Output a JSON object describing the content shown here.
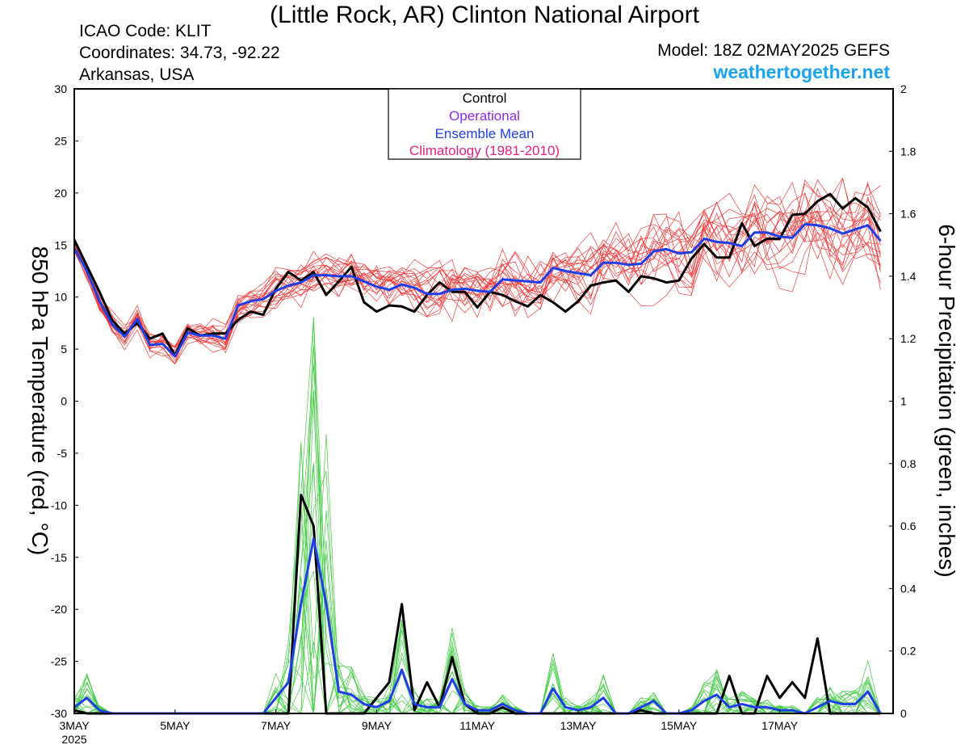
{
  "header": {
    "title": "(Little Rock, AR) Clinton National Airport",
    "icao": "ICAO Code: KLIT",
    "coordinates": "Coordinates: 34.73, -92.22",
    "region": "Arkansas, USA",
    "model": "Model: 18Z 02MAY2025 GEFS",
    "site": "weathertogether.net"
  },
  "colors": {
    "control": "#000000",
    "operational": "#8a2be2",
    "mean": "#1f3fe6",
    "climatology": "#e0208a",
    "temperature_members": "#ee3a3a",
    "precip_members": "#44cc44",
    "site": "#1aa3f0"
  },
  "chart_data": {
    "type": "line",
    "legend": {
      "position": "top-center",
      "entries": [
        "Control",
        "Operational",
        "Ensemble Mean",
        "Climatology (1981-2010)"
      ]
    },
    "xlabels": [
      "3MAY",
      "5MAY",
      "7MAY",
      "9MAY",
      "11MAY",
      "13MAY",
      "15MAY",
      "17MAY"
    ],
    "xyear": "2025",
    "x_range_days": [
      3,
      19.25
    ],
    "left_axis": {
      "label": "850 hPa Temperature (red, °C)",
      "range": [
        -30,
        30
      ],
      "ticks": [
        -30,
        -25,
        -20,
        -15,
        -10,
        -5,
        0,
        5,
        10,
        15,
        20,
        25,
        30
      ]
    },
    "right_axis": {
      "label": "6-hour Precipitation (green, inches)",
      "range": [
        0,
        2
      ],
      "ticks": [
        "0",
        "0.2",
        "0.4",
        "0.6",
        "0.8",
        "1",
        "1.2",
        "1.4",
        "1.6",
        "1.8",
        "2"
      ]
    },
    "series": [
      {
        "name": "Control",
        "axis": "left",
        "values": [
          15.5,
          13.0,
          10.5,
          7.8,
          6.5,
          7.5,
          6.0,
          6.5,
          4.4,
          7.0,
          6.3,
          6.5,
          6.5,
          7.8,
          8.6,
          8.3,
          10.8,
          12.4,
          11.6,
          12.4,
          10.2,
          11.5,
          12.9,
          9.5,
          8.6,
          9.2,
          9.1,
          8.6,
          10.2,
          11.4,
          10.5,
          10.5,
          9.0,
          10.5,
          10.2,
          9.6,
          9.1,
          10.2,
          9.5,
          8.6,
          9.6,
          11.1,
          11.4,
          11.6,
          10.5,
          12.0,
          11.8,
          11.4,
          11.6,
          13.7,
          15.1,
          13.8,
          13.8,
          17.1,
          14.9,
          15.6,
          15.6,
          17.9,
          18.0,
          19.2,
          19.9,
          18.5,
          19.5,
          18.6,
          16.3
        ]
      },
      {
        "name": "Ensemble Mean",
        "axis": "left",
        "values": [
          14.7,
          12.5,
          9.6,
          7.4,
          6.2,
          7.9,
          5.4,
          5.5,
          4.3,
          6.6,
          6.3,
          6.3,
          6.0,
          9.2,
          9.6,
          9.8,
          10.6,
          11.1,
          11.4,
          12.1,
          12.1,
          12.0,
          12.0,
          11.5,
          11.0,
          10.7,
          11.2,
          10.9,
          10.3,
          10.3,
          10.7,
          10.8,
          10.6,
          10.5,
          11.7,
          11.6,
          11.5,
          11.4,
          12.8,
          12.5,
          12.3,
          12.1,
          13.3,
          13.3,
          13.1,
          13.2,
          14.4,
          14.6,
          14.2,
          14.3,
          15.6,
          15.3,
          15.2,
          14.9,
          16.2,
          16.2,
          15.8,
          15.7,
          17.0,
          16.9,
          16.6,
          16.1,
          16.5,
          16.9,
          15.4
        ]
      },
      {
        "name": "Control",
        "axis": "right",
        "values": [
          0.01,
          0.0,
          0.0,
          0.0,
          0.0,
          0.0,
          0.0,
          0.0,
          0.0,
          0.0,
          0.0,
          0.0,
          0.0,
          0.0,
          0.0,
          0.0,
          0.0,
          0.0,
          0.7,
          0.6,
          0.0,
          0.0,
          0.0,
          0.0,
          0.05,
          0.1,
          0.35,
          0.01,
          0.1,
          0.02,
          0.18,
          0.03,
          0.0,
          0.0,
          0.02,
          0.0,
          0.0,
          0.0,
          0.0,
          0.0,
          0.0,
          0.0,
          0.0,
          0.0,
          0.0,
          0.01,
          0.0,
          0.0,
          0.0,
          0.0,
          0.0,
          0.0,
          0.12,
          0.0,
          0.0,
          0.12,
          0.05,
          0.1,
          0.05,
          0.24,
          0.0,
          0.0,
          0.0,
          0.0,
          0.0
        ]
      },
      {
        "name": "Ensemble Mean",
        "axis": "right",
        "values": [
          0.02,
          0.05,
          0.01,
          0.0,
          0.0,
          0.0,
          0.0,
          0.0,
          0.0,
          0.0,
          0.0,
          0.0,
          0.0,
          0.0,
          0.0,
          0.0,
          0.05,
          0.1,
          0.35,
          0.56,
          0.35,
          0.07,
          0.06,
          0.03,
          0.02,
          0.04,
          0.14,
          0.03,
          0.02,
          0.02,
          0.11,
          0.03,
          0.01,
          0.01,
          0.03,
          0.01,
          0.0,
          0.0,
          0.08,
          0.02,
          0.01,
          0.02,
          0.05,
          0.0,
          0.0,
          0.02,
          0.04,
          0.0,
          0.0,
          0.01,
          0.04,
          0.06,
          0.02,
          0.03,
          0.02,
          0.02,
          0.01,
          0.01,
          0.0,
          0.02,
          0.04,
          0.03,
          0.03,
          0.07,
          0.0
        ]
      }
    ]
  }
}
